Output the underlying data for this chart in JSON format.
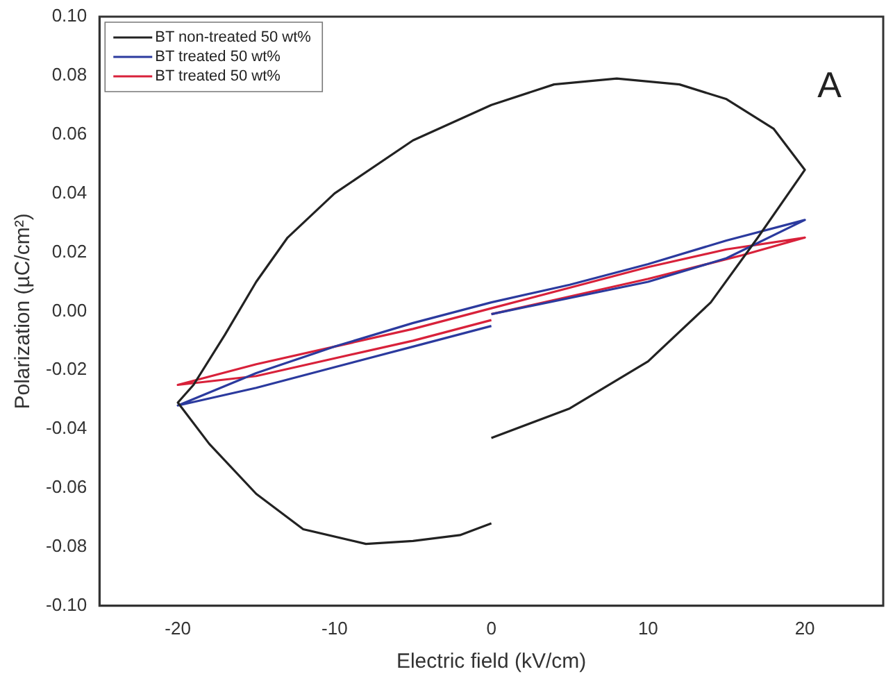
{
  "chart_data": {
    "type": "line",
    "xlabel": "Electric field (kV/cm)",
    "ylabel": "Polarization (µC/cm²)",
    "annotations": [
      "A"
    ],
    "xlim": [
      -25,
      25
    ],
    "xticks": [
      -20,
      -10,
      0,
      10,
      20
    ],
    "ylim": [
      -0.1,
      0.1
    ],
    "yticks": [
      {
        "value": -0.1,
        "label": "-0.10"
      },
      -0.08,
      -0.06,
      -0.04,
      -0.02,
      {
        "value": 0,
        "label": "0.00"
      },
      0.02,
      0.04,
      0.06,
      0.08,
      {
        "value": 0.1,
        "label": "0.10"
      }
    ],
    "grid": false,
    "legend": "top left",
    "marker": "none",
    "line_style": "solid",
    "series": [
      {
        "name": "BT non-treated 50 wt%",
        "color": "#222222",
        "x": [
          0,
          5,
          10,
          14,
          17,
          20,
          18,
          15,
          12,
          8,
          4,
          0,
          -5,
          -10,
          -13,
          -15,
          -17,
          -19,
          -20,
          -18,
          -15,
          -12,
          -8,
          -5,
          -2,
          0
        ],
        "values": [
          -0.043,
          -0.033,
          -0.017,
          0.003,
          0.025,
          0.048,
          0.062,
          0.072,
          0.077,
          0.079,
          0.077,
          0.07,
          0.058,
          0.04,
          0.025,
          0.01,
          -0.008,
          -0.025,
          -0.031,
          -0.045,
          -0.062,
          -0.074,
          -0.079,
          -0.078,
          -0.076,
          -0.072
        ]
      },
      {
        "name": "BT treated 50 wt%",
        "color": "#2b3a9e",
        "x": [
          0,
          10,
          15,
          20,
          15,
          10,
          5,
          0,
          -5,
          -10,
          -15,
          -20,
          -15,
          -10,
          -5,
          0
        ],
        "values": [
          -0.001,
          0.01,
          0.018,
          0.031,
          0.024,
          0.016,
          0.009,
          0.003,
          -0.004,
          -0.012,
          -0.021,
          -0.032,
          -0.026,
          -0.019,
          -0.012,
          -0.005
        ]
      },
      {
        "name": "BT treated 50 wt%",
        "color": "#d8213a",
        "x": [
          0,
          10,
          16,
          20,
          15,
          10,
          5,
          0,
          -5,
          -10,
          -15,
          -20,
          -15,
          -10,
          -5,
          0
        ],
        "values": [
          -0.001,
          0.011,
          0.019,
          0.025,
          0.021,
          0.015,
          0.008,
          0.001,
          -0.006,
          -0.012,
          -0.018,
          -0.025,
          -0.022,
          -0.016,
          -0.01,
          -0.003
        ]
      }
    ]
  }
}
